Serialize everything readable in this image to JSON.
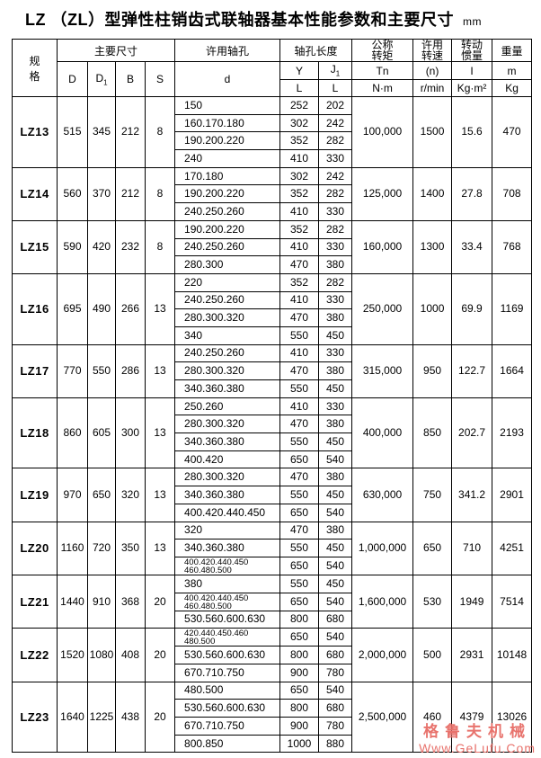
{
  "title": {
    "text": "LZ （ZL）型弹性柱销齿式联轴器基本性能参数和主要尺寸",
    "unit": "mm"
  },
  "watermark": {
    "line1": "格鲁夫机械",
    "line2": "Www.GeLufu.Com",
    "color": "#e8736d"
  },
  "table": {
    "header": {
      "spec": "规\n格",
      "main_dims": "主要尺寸",
      "d_group": "许用轴孔",
      "bore_len": "轴孔长度",
      "torque": "公称\n转矩",
      "speed": "许用\n转速",
      "inertia": "转动\n惯量",
      "weight": "重量",
      "col_D": "D",
      "col_D1": {
        "base": "D",
        "sub": "1"
      },
      "col_B": "B",
      "col_S": "S",
      "col_d": "d",
      "col_Y": "Y",
      "col_J": {
        "base": "J",
        "sub": "1"
      },
      "col_L_Y": "L",
      "col_L_J": "L",
      "torque_sym": "Tn",
      "torque_unit": "N·m",
      "speed_sym": "(n)",
      "speed_unit": "r/min",
      "inertia_sym": "I",
      "inertia_unit": "Kg·m²",
      "weight_sym": "m",
      "weight_unit": "Kg"
    },
    "rows": [
      {
        "model": "LZ13",
        "D": "515",
        "D1": "345",
        "B": "212",
        "S": "8",
        "Tn": "100,000",
        "n": "1500",
        "I": "15.6",
        "m": "470",
        "bores": [
          {
            "d": "150",
            "Y": "252",
            "J": "202"
          },
          {
            "d": "160.170.180",
            "Y": "302",
            "J": "242"
          },
          {
            "d": "190.200.220",
            "Y": "352",
            "J": "282"
          },
          {
            "d": "240",
            "Y": "410",
            "J": "330"
          }
        ]
      },
      {
        "model": "LZ14",
        "D": "560",
        "D1": "370",
        "B": "212",
        "S": "8",
        "Tn": "125,000",
        "n": "1400",
        "I": "27.8",
        "m": "708",
        "bores": [
          {
            "d": "170.180",
            "Y": "302",
            "J": "242"
          },
          {
            "d": "190.200.220",
            "Y": "352",
            "J": "282"
          },
          {
            "d": "240.250.260",
            "Y": "410",
            "J": "330"
          }
        ]
      },
      {
        "model": "LZ15",
        "D": "590",
        "D1": "420",
        "B": "232",
        "S": "8",
        "Tn": "160,000",
        "n": "1300",
        "I": "33.4",
        "m": "768",
        "bores": [
          {
            "d": "190.200.220",
            "Y": "352",
            "J": "282"
          },
          {
            "d": "240.250.260",
            "Y": "410",
            "J": "330"
          },
          {
            "d": "280.300",
            "Y": "470",
            "J": "380"
          }
        ]
      },
      {
        "model": "LZ16",
        "D": "695",
        "D1": "490",
        "B": "266",
        "S": "13",
        "Tn": "250,000",
        "n": "1000",
        "I": "69.9",
        "m": "1169",
        "bores": [
          {
            "d": "220",
            "Y": "352",
            "J": "282"
          },
          {
            "d": "240.250.260",
            "Y": "410",
            "J": "330"
          },
          {
            "d": "280.300.320",
            "Y": "470",
            "J": "380"
          },
          {
            "d": "340",
            "Y": "550",
            "J": "450"
          }
        ]
      },
      {
        "model": "LZ17",
        "D": "770",
        "D1": "550",
        "B": "286",
        "S": "13",
        "Tn": "315,000",
        "n": "950",
        "I": "122.7",
        "m": "1664",
        "bores": [
          {
            "d": "240.250.260",
            "Y": "410",
            "J": "330"
          },
          {
            "d": "280.300.320",
            "Y": "470",
            "J": "380"
          },
          {
            "d": "340.360.380",
            "Y": "550",
            "J": "450"
          }
        ]
      },
      {
        "model": "LZ18",
        "D": "860",
        "D1": "605",
        "B": "300",
        "S": "13",
        "Tn": "400,000",
        "n": "850",
        "I": "202.7",
        "m": "2193",
        "bores": [
          {
            "d": "250.260",
            "Y": "410",
            "J": "330"
          },
          {
            "d": "280.300.320",
            "Y": "470",
            "J": "380"
          },
          {
            "d": "340.360.380",
            "Y": "550",
            "J": "450"
          },
          {
            "d": "400.420",
            "Y": "650",
            "J": "540"
          }
        ]
      },
      {
        "model": "LZ19",
        "D": "970",
        "D1": "650",
        "B": "320",
        "S": "13",
        "Tn": "630,000",
        "n": "750",
        "I": "341.2",
        "m": "2901",
        "bores": [
          {
            "d": "280.300.320",
            "Y": "470",
            "J": "380"
          },
          {
            "d": "340.360.380",
            "Y": "550",
            "J": "450"
          },
          {
            "d": "400.420.440.450",
            "Y": "650",
            "J": "540"
          }
        ]
      },
      {
        "model": "LZ20",
        "D": "1160",
        "D1": "720",
        "B": "350",
        "S": "13",
        "Tn": "1,000,000",
        "n": "650",
        "I": "710",
        "m": "4251",
        "bores": [
          {
            "d": "320",
            "Y": "470",
            "J": "380"
          },
          {
            "d": "340.360.380",
            "Y": "550",
            "J": "450"
          },
          {
            "d": "400.420.440.450\n460.480.500",
            "Y": "650",
            "J": "540"
          }
        ]
      },
      {
        "model": "LZ21",
        "D": "1440",
        "D1": "910",
        "B": "368",
        "S": "20",
        "Tn": "1,600,000",
        "n": "530",
        "I": "1949",
        "m": "7514",
        "bores": [
          {
            "d": "380",
            "Y": "550",
            "J": "450"
          },
          {
            "d": "400.420.440.450\n460.480.500",
            "Y": "650",
            "J": "540"
          },
          {
            "d": "530.560.600.630",
            "Y": "800",
            "J": "680"
          }
        ]
      },
      {
        "model": "LZ22",
        "D": "1520",
        "D1": "1080",
        "B": "408",
        "S": "20",
        "Tn": "2,000,000",
        "n": "500",
        "I": "2931",
        "m": "10148",
        "bores": [
          {
            "d": "420.440.450.460\n480.500",
            "Y": "650",
            "J": "540"
          },
          {
            "d": "530.560.600.630",
            "Y": "800",
            "J": "680"
          },
          {
            "d": "670.710.750",
            "Y": "900",
            "J": "780"
          }
        ]
      },
      {
        "model": "LZ23",
        "D": "1640",
        "D1": "1225",
        "B": "438",
        "S": "20",
        "Tn": "2,500,000",
        "n": "460",
        "I": "4379",
        "m": "13026",
        "bores": [
          {
            "d": "480.500",
            "Y": "650",
            "J": "540"
          },
          {
            "d": "530.560.600.630",
            "Y": "800",
            "J": "680"
          },
          {
            "d": "670.710.750",
            "Y": "900",
            "J": "780"
          },
          {
            "d": "800.850",
            "Y": "1000",
            "J": "880"
          }
        ]
      }
    ]
  }
}
